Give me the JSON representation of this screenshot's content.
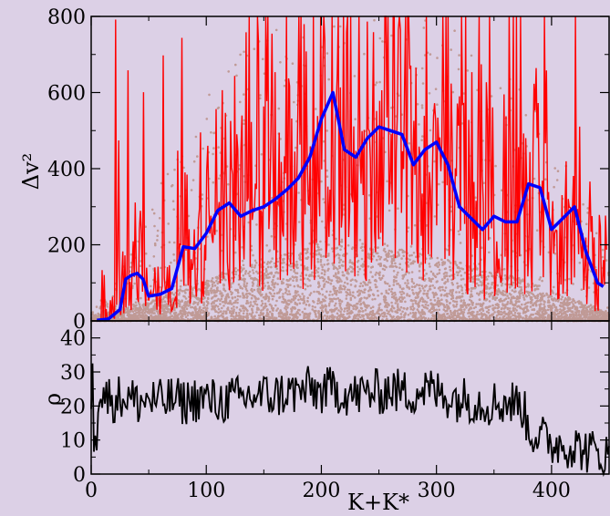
{
  "colors": {
    "background": "#dcd0e6",
    "scatter": "#c09a96",
    "red_series": "#ff0000",
    "blue_series": "#0000ff",
    "rho_series": "#000000"
  },
  "chart_data": [
    {
      "type": "scatter",
      "panel": "top",
      "xlabel": "",
      "ylabel": "Δv²",
      "xlim": [
        0,
        450
      ],
      "ylim": [
        0,
        800
      ],
      "x_ticks": [
        0,
        100,
        200,
        300,
        400
      ],
      "y_ticks": [
        0,
        200,
        400,
        600,
        800
      ],
      "y_tick_labels": [
        "0",
        "200",
        "400",
        "600",
        "800"
      ],
      "grid": false,
      "legend": "none",
      "scatter_envelope": {
        "x": [
          0,
          25,
          50,
          75,
          100,
          125,
          150,
          175,
          200,
          225,
          250,
          275,
          300,
          325,
          350,
          375,
          400,
          425,
          450
        ],
        "typical_max": [
          10,
          30,
          50,
          80,
          110,
          140,
          160,
          180,
          200,
          200,
          195,
          185,
          170,
          150,
          130,
          110,
          80,
          50,
          20
        ],
        "outlier_max": [
          20,
          120,
          300,
          450,
          600,
          700,
          760,
          800,
          800,
          800,
          800,
          800,
          800,
          780,
          700,
          600,
          500,
          350,
          150
        ]
      },
      "series": [
        {
          "type": "line",
          "x": [
            5,
            15,
            25,
            30,
            35,
            40,
            45,
            50,
            60,
            70,
            80,
            90,
            100,
            110,
            120,
            130,
            140,
            150,
            160,
            170,
            180,
            190,
            200,
            210,
            220,
            230,
            240,
            250,
            260,
            270,
            280,
            290,
            300,
            310,
            320,
            330,
            340,
            350,
            360,
            370,
            380,
            390,
            400,
            410,
            420,
            430,
            440,
            445
          ],
          "values": [
            2,
            5,
            30,
            110,
            120,
            125,
            110,
            65,
            70,
            85,
            195,
            190,
            230,
            290,
            310,
            275,
            290,
            300,
            320,
            345,
            375,
            430,
            530,
            600,
            450,
            430,
            480,
            510,
            500,
            490,
            410,
            450,
            470,
            410,
            300,
            270,
            240,
            275,
            260,
            260,
            360,
            350,
            240,
            270,
            300,
            180,
            100,
            90
          ]
        },
        {
          "type": "line",
          "x": [
            5,
            15,
            25,
            30,
            35,
            40,
            45,
            50,
            60,
            70,
            80,
            90,
            100,
            110,
            120,
            130,
            140,
            150,
            160,
            170,
            180,
            190,
            200,
            210,
            220,
            230,
            240,
            250,
            260,
            270,
            280,
            290,
            300,
            310,
            320,
            330,
            340,
            350,
            360,
            370,
            380,
            390,
            400,
            410,
            420,
            430,
            440,
            445
          ],
          "values": [
            2,
            5,
            30,
            110,
            120,
            125,
            110,
            65,
            70,
            85,
            195,
            190,
            230,
            290,
            310,
            275,
            290,
            300,
            320,
            345,
            375,
            430,
            530,
            600,
            450,
            430,
            480,
            510,
            500,
            490,
            410,
            450,
            470,
            410,
            300,
            270,
            240,
            275,
            260,
            260,
            360,
            350,
            240,
            270,
            300,
            180,
            100,
            90
          ]
        }
      ]
    },
    {
      "type": "line",
      "panel": "bottom",
      "xlabel": "K+K*",
      "ylabel": "ρ",
      "xlim": [
        0,
        450
      ],
      "ylim": [
        0,
        45
      ],
      "x_ticks": [
        0,
        100,
        200,
        300,
        400
      ],
      "x_tick_labels": [
        "0",
        "100",
        "200",
        "300",
        "400"
      ],
      "y_ticks": [
        0,
        10,
        20,
        30,
        40
      ],
      "y_tick_labels": [
        "0",
        "10",
        "20",
        "30",
        "40"
      ],
      "grid": false,
      "legend": "none",
      "series": [
        {
          "type": "line",
          "x": [
            0,
            10,
            20,
            30,
            40,
            50,
            60,
            70,
            80,
            90,
            100,
            110,
            120,
            130,
            140,
            150,
            160,
            170,
            180,
            190,
            200,
            210,
            220,
            230,
            240,
            250,
            260,
            270,
            280,
            290,
            300,
            310,
            320,
            330,
            340,
            350,
            360,
            370,
            375,
            380,
            390,
            400,
            410,
            420,
            430,
            440,
            450
          ],
          "values": [
            24,
            23,
            22,
            23,
            21,
            22,
            21,
            22,
            21,
            22,
            22,
            21,
            22,
            22,
            23,
            23,
            23,
            24,
            24,
            25,
            24,
            25,
            24,
            23,
            24,
            24,
            25,
            24,
            24,
            25,
            24,
            23,
            22,
            22,
            21,
            21,
            21,
            21,
            20,
            13,
            11,
            9,
            9,
            8,
            7,
            6,
            5
          ]
        }
      ]
    }
  ]
}
